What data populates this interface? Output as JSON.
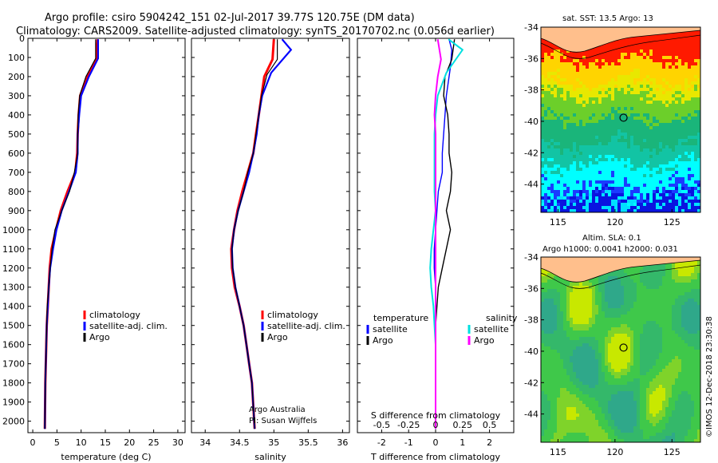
{
  "header": {
    "line1": "Argo profile: csiro 5904242_151 02-Jul-2017 39.77S 120.75E (DM data)",
    "line2": "Climatology: CARS2009. Satellite-adjusted climatology: synTS_20170702.nc (0.056d earlier)"
  },
  "depth_ticks": [
    0,
    100,
    200,
    300,
    400,
    500,
    600,
    700,
    800,
    900,
    1000,
    1100,
    1200,
    1300,
    1400,
    1500,
    1600,
    1700,
    1800,
    1900,
    2000
  ],
  "chart_data": [
    {
      "type": "line",
      "panel": "temperature",
      "xlabel": "temperature (deg C)",
      "xlim": [
        -1,
        31.5
      ],
      "ylim": [
        0,
        2060
      ],
      "y_inverted": true,
      "xticks": [
        0,
        5,
        10,
        15,
        20,
        25,
        30
      ],
      "legend": [
        "climatology",
        "satellite-adj. clim.",
        "Argo"
      ],
      "colors": {
        "climatology": "#ff0000",
        "satellite": "#0000ff",
        "argo": "#000000"
      },
      "series": [
        {
          "name": "climatology",
          "x": [
            13.4,
            13.2,
            11.2,
            9.8,
            9.5,
            9.3,
            9.2,
            8.8,
            7.2,
            5.8,
            4.8,
            3.9,
            3.5,
            3.3,
            3.1,
            2.9,
            2.8,
            2.7,
            2.6,
            2.5
          ],
          "y": [
            5,
            105,
            200,
            300,
            400,
            500,
            600,
            700,
            800,
            900,
            1000,
            1100,
            1200,
            1300,
            1400,
            1500,
            1600,
            1700,
            1800,
            2040
          ]
        },
        {
          "name": "satellite-adj. clim.",
          "x": [
            13.5,
            13.5,
            11.6,
            10.0,
            9.6,
            9.3,
            9.3,
            8.9,
            7.5,
            6.0,
            4.9,
            4.2,
            3.6,
            3.3,
            3.1,
            2.9,
            2.8,
            2.7,
            2.6,
            2.5
          ],
          "y": [
            5,
            105,
            200,
            300,
            400,
            500,
            600,
            700,
            800,
            900,
            1000,
            1100,
            1200,
            1300,
            1400,
            1500,
            1600,
            1700,
            1800,
            2040
          ]
        },
        {
          "name": "Argo",
          "x": [
            13.0,
            13.0,
            11.0,
            9.7,
            9.4,
            9.3,
            9.3,
            8.6,
            7.6,
            6.0,
            4.6,
            4.0,
            3.6,
            3.3,
            3.0,
            2.9,
            2.8,
            2.7,
            2.6,
            2.5
          ],
          "y": [
            5,
            105,
            200,
            300,
            400,
            500,
            600,
            700,
            800,
            900,
            1000,
            1100,
            1200,
            1300,
            1400,
            1500,
            1600,
            1700,
            1800,
            2040
          ]
        }
      ]
    },
    {
      "type": "line",
      "panel": "salinity",
      "xlabel": "salinity",
      "xlim": [
        33.8,
        36.1
      ],
      "ylim": [
        0,
        2060
      ],
      "y_inverted": true,
      "xticks": [
        34,
        34.5,
        35,
        35.5,
        36
      ],
      "xticklabels": [
        "34",
        "34.5",
        "35",
        "35.5",
        "36"
      ],
      "legend": [
        "climatology",
        "satellite-adj. clim.",
        "Argo"
      ],
      "colors": {
        "climatology": "#ff0000",
        "satellite": "#0000ff",
        "argo": "#000000"
      },
      "series": [
        {
          "name": "climatology",
          "x": [
            35.0,
            34.98,
            34.86,
            34.82,
            34.78,
            34.74,
            34.7,
            34.62,
            34.54,
            34.47,
            34.42,
            34.38,
            34.39,
            34.43,
            34.5,
            34.56,
            34.6,
            34.64,
            34.68,
            34.72
          ],
          "y": [
            5,
            110,
            200,
            300,
            400,
            500,
            600,
            700,
            800,
            900,
            1000,
            1100,
            1200,
            1300,
            1400,
            1500,
            1600,
            1700,
            1800,
            2040
          ]
        },
        {
          "name": "satellite-adj. clim.",
          "x": [
            35.12,
            35.25,
            34.96,
            34.83,
            34.78,
            34.75,
            34.7,
            34.64,
            34.56,
            34.48,
            34.42,
            34.39,
            34.4,
            34.44,
            34.5,
            34.56,
            34.6,
            34.64,
            34.68,
            34.72
          ],
          "y": [
            5,
            60,
            180,
            300,
            400,
            500,
            600,
            700,
            800,
            900,
            1000,
            1100,
            1200,
            1300,
            1400,
            1500,
            1600,
            1700,
            1800,
            2040
          ]
        },
        {
          "name": "Argo",
          "x": [
            35.05,
            35.05,
            34.9,
            34.82,
            34.78,
            34.74,
            34.7,
            34.62,
            34.56,
            34.48,
            34.42,
            34.39,
            34.4,
            34.44,
            34.5,
            34.56,
            34.6,
            34.64,
            34.68,
            34.72
          ],
          "y": [
            5,
            110,
            190,
            300,
            400,
            500,
            600,
            700,
            800,
            900,
            1000,
            1100,
            1200,
            1300,
            1400,
            1500,
            1600,
            1700,
            1800,
            2040
          ]
        }
      ],
      "annotation": [
        "Argo Australia",
        "PI: Susan Wijffels"
      ]
    },
    {
      "type": "line",
      "panel": "difference",
      "xlabel": "T difference from climatology",
      "x2label": "S difference from climatology",
      "xlim": [
        -2.9,
        2.9
      ],
      "x2lim": [
        -0.725,
        0.725
      ],
      "ylim": [
        0,
        2060
      ],
      "y_inverted": true,
      "xticks": [
        -2,
        -1,
        0,
        1,
        2
      ],
      "x2ticks": [
        -0.5,
        -0.25,
        0,
        0.25,
        0.5
      ],
      "x2ticklabels": [
        "-0.5",
        "-0.25",
        "0",
        "0.25",
        "0.5"
      ],
      "legend_left_title": "temperature",
      "legend_right_title": "salinity",
      "legend_left": [
        "satellite",
        "Argo"
      ],
      "legend_right": [
        "satellite",
        "Argo"
      ],
      "colors": {
        "t_satellite": "#0000ff",
        "t_argo": "#000000",
        "s_satellite": "#00e0e0",
        "s_argo": "#ff00ff"
      },
      "series": [
        {
          "name": "T satellite",
          "axis": "T",
          "x": [
            0.5,
            0.6,
            0.55,
            0.4,
            0.35,
            0.3,
            0.25,
            0.25,
            0.1,
            0.05,
            0.0,
            -0.05,
            -0.05,
            0.0,
            0.0,
            0.0,
            0.0,
            0.0,
            0.0,
            0.0
          ],
          "y": [
            5,
            60,
            150,
            300,
            400,
            500,
            600,
            700,
            800,
            900,
            1000,
            1100,
            1200,
            1300,
            1400,
            1500,
            1600,
            1700,
            1800,
            2040
          ]
        },
        {
          "name": "T Argo",
          "axis": "T",
          "x": [
            0.7,
            0.6,
            0.35,
            0.3,
            0.45,
            0.5,
            0.5,
            0.6,
            0.55,
            0.4,
            0.55,
            0.4,
            0.25,
            0.1,
            0.05,
            0.0,
            0.0,
            0.0,
            0.0,
            0.0
          ],
          "y": [
            5,
            110,
            200,
            300,
            400,
            500,
            600,
            700,
            800,
            900,
            1000,
            1100,
            1200,
            1300,
            1400,
            1500,
            1600,
            1700,
            1800,
            2040
          ]
        },
        {
          "name": "S satellite",
          "axis": "S",
          "x": [
            0.12,
            0.25,
            0.1,
            0.02,
            0.0,
            -0.01,
            -0.01,
            -0.01,
            -0.01,
            0.0,
            -0.02,
            -0.04,
            -0.05,
            -0.04,
            -0.02,
            -0.01,
            0.0,
            0.0,
            0.0,
            0.0
          ],
          "y": [
            5,
            60,
            180,
            300,
            400,
            500,
            600,
            700,
            800,
            900,
            1000,
            1100,
            1200,
            1300,
            1400,
            1500,
            1600,
            1700,
            1800,
            2040
          ]
        },
        {
          "name": "S Argo",
          "axis": "S",
          "x": [
            0.02,
            0.05,
            0.02,
            0.0,
            -0.01,
            0.0,
            0.0,
            0.0,
            0.0,
            0.0,
            0.0,
            0.0,
            0.0,
            0.0,
            0.0,
            0.0,
            0.0,
            0.0,
            0.0,
            0.0
          ],
          "y": [
            5,
            110,
            200,
            300,
            400,
            500,
            600,
            700,
            800,
            900,
            1000,
            1100,
            1200,
            1300,
            1400,
            1500,
            1600,
            1700,
            1800,
            2040
          ]
        }
      ]
    },
    {
      "type": "heatmap",
      "panel": "sst-map",
      "title": "sat. SST: 13.5 Argo: 13",
      "xlim": [
        113.5,
        127.5
      ],
      "ylim": [
        -45.8,
        -34
      ],
      "xticks": [
        115,
        120,
        125
      ],
      "yticks": [
        -34,
        -36,
        -38,
        -40,
        -42,
        -44
      ],
      "marker": {
        "lon": 120.75,
        "lat": -39.77
      }
    },
    {
      "type": "heatmap",
      "panel": "sla-map",
      "title": "Altim. SLA: 0.1",
      "subtitle": "Argo h1000: 0.0041 h2000: 0.031",
      "xlim": [
        113.5,
        127.5
      ],
      "ylim": [
        -45.8,
        -34
      ],
      "xticks": [
        115,
        120,
        125
      ],
      "yticks": [
        -34,
        -36,
        -38,
        -40,
        -42,
        -44
      ],
      "marker": {
        "lon": 120.75,
        "lat": -39.77
      }
    }
  ],
  "side_label": "©IMOS 12-Dec-2018 23:30:38"
}
